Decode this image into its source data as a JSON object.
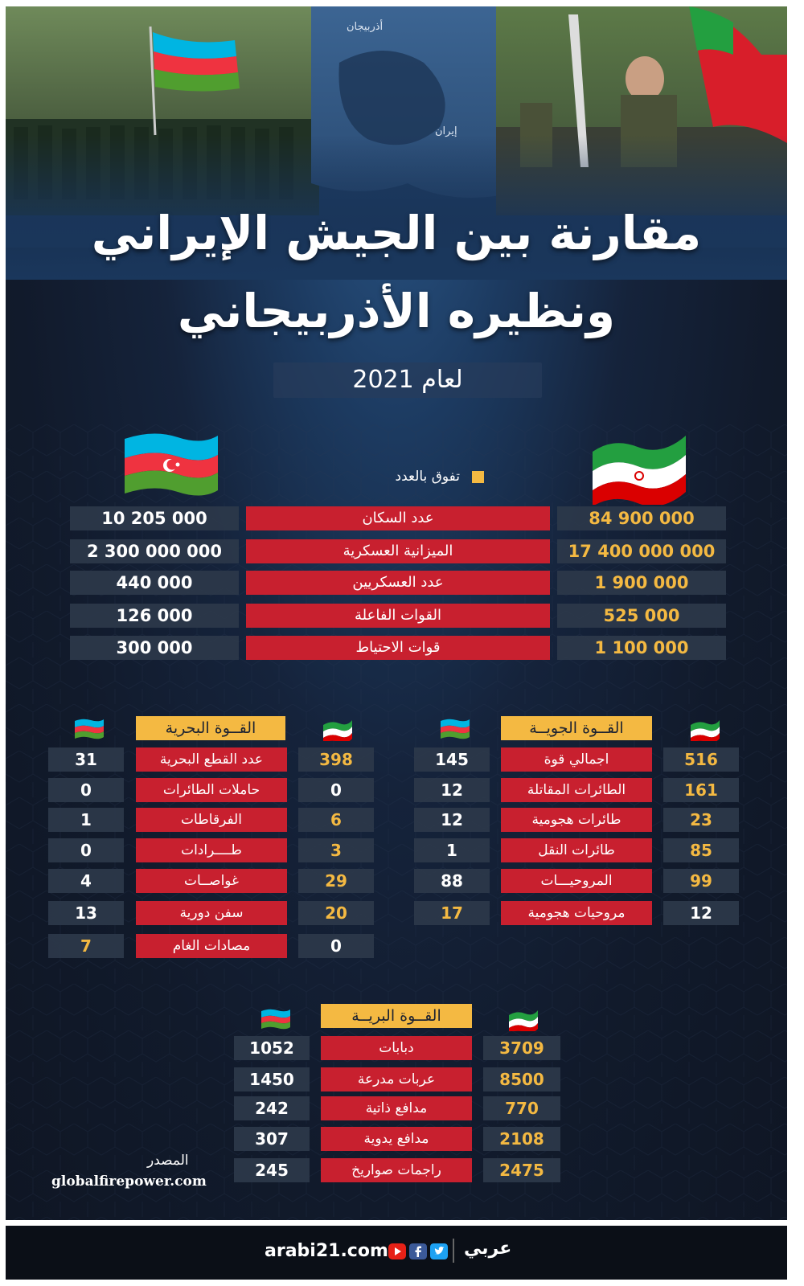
{
  "map_labels": {
    "azerbaijan": "أذربيجان",
    "iran": "إيران"
  },
  "title": {
    "line1": "مقارنة بين الجيش الإيراني",
    "line2": "ونظيره الأذربيجاني",
    "year": "لعام 2021"
  },
  "legend": {
    "label": "تفوق بالعدد",
    "color": "#f4b942"
  },
  "colors": {
    "label_red": "#c8202f",
    "highlight_gold": "#f4b942",
    "background": "#111a2b"
  },
  "main_rows": [
    {
      "label": "عدد السكان",
      "iran": "84 900 000",
      "azerbaijan": "10 205 000"
    },
    {
      "label": "الميزانية العسكرية",
      "iran": "17 400 000 000",
      "azerbaijan": "2 300 000 000"
    },
    {
      "label": "عدد العسكريين",
      "iran": "1 900 000",
      "azerbaijan": "440 000"
    },
    {
      "label": "القوات الفاعلة",
      "iran": "525 000",
      "azerbaijan": "126 000"
    },
    {
      "label": "قوات الاحتياط",
      "iran": "1 100 000",
      "azerbaijan": "300 000"
    }
  ],
  "air": {
    "title": "القــوة الجويــة",
    "rows": [
      {
        "label": "اجمالي قوة",
        "iran": "516",
        "azerbaijan": "145"
      },
      {
        "label": "الطائرات المقاتلة",
        "iran": "161",
        "azerbaijan": "12"
      },
      {
        "label": "طائرات هجومية",
        "iran": "23",
        "azerbaijan": "12"
      },
      {
        "label": "طائرات النقل",
        "iran": "85",
        "azerbaijan": "1"
      },
      {
        "label": "المروحيـــات",
        "iran": "99",
        "azerbaijan": "88"
      },
      {
        "label": "مروحيات هجومية",
        "iran": "12",
        "azerbaijan": "17"
      }
    ]
  },
  "naval": {
    "title": "القــوة البحرية",
    "rows": [
      {
        "label": "عدد القطع البحرية",
        "iran": "398",
        "azerbaijan": "31"
      },
      {
        "label": "حاملات الطائرات",
        "iran": "0",
        "azerbaijan": "0"
      },
      {
        "label": "الفرقاطات",
        "iran": "6",
        "azerbaijan": "1"
      },
      {
        "label": "طــــرادات",
        "iran": "3",
        "azerbaijan": "0"
      },
      {
        "label": "غواصــات",
        "iran": "29",
        "azerbaijan": "4"
      },
      {
        "label": "سفن دورية",
        "iran": "20",
        "azerbaijan": "13"
      },
      {
        "label": "مصادات الغام",
        "iran": "0",
        "azerbaijan": "7"
      }
    ]
  },
  "land": {
    "title": "القــوة البريــة",
    "rows": [
      {
        "label": "دبابات",
        "iran": "3709",
        "azerbaijan": "1052"
      },
      {
        "label": "عربات مدرعة",
        "iran": "8500",
        "azerbaijan": "1450"
      },
      {
        "label": "مدافع ذاتية",
        "iran": "770",
        "azerbaijan": "242"
      },
      {
        "label": "مدافع يدوية",
        "iran": "2108",
        "azerbaijan": "307"
      },
      {
        "label": "راجمات صواريخ",
        "iran": "2475",
        "azerbaijan": "245"
      }
    ]
  },
  "source": {
    "label": "المصدر",
    "url": "globalfirepower.com"
  },
  "footer": {
    "site": "arabi21.com",
    "brand": "عربي"
  }
}
